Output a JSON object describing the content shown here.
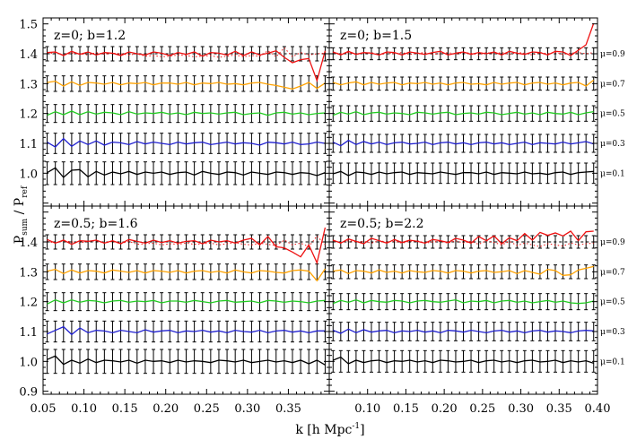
{
  "chart_data": {
    "type": "line",
    "xlabel": "k [h Mpc",
    "xlabel_sup": "-1",
    "xlabel_close": "]",
    "ylabel_main": "P",
    "ylabel_sub1": "sum",
    "ylabel_mid": " / P",
    "ylabel_sub2": "ref",
    "xlim": [
      0.05,
      0.4
    ],
    "ylim": [
      0.89,
      1.52
    ],
    "x_ticks": [
      "0.05",
      "0.10",
      "0.15",
      "0.20",
      "0.25",
      "0.30",
      "0.35"
    ],
    "x_ticks_right": [
      "0.10",
      "0.15",
      "0.20",
      "0.25",
      "0.30",
      "0.35",
      "0.40"
    ],
    "y_ticks_top": [
      "1.0",
      "1.1",
      "1.2",
      "1.3",
      "1.4",
      "1.5"
    ],
    "y_ticks_bottom": [
      "0.9",
      "1.0",
      "1.1",
      "1.2",
      "1.3",
      "1.4"
    ],
    "mu_labels": [
      "μ=0.1",
      "μ=0.3",
      "μ=0.5",
      "μ=0.7",
      "μ=0.9"
    ],
    "series_colors": [
      "#000000",
      "#1f1fd0",
      "#22cc22",
      "#ffa200",
      "#ee1111"
    ],
    "offsets": [
      1.0,
      1.1,
      1.2,
      1.3,
      1.4
    ],
    "panels": [
      {
        "title": "z=0; b=1.2",
        "errors": [
          0.038,
          0.034,
          0.03,
          0.026,
          0.024
        ],
        "series_deviations": [
          [
            0.002,
            0.018,
            -0.014,
            0.01,
            0.012,
            -0.012,
            0.006,
            -0.006,
            0.004,
            -0.002,
            0.006,
            -0.004,
            0.004,
            0.0,
            0.004,
            -0.004,
            0.002,
            0.004,
            -0.006,
            0.006,
            0.0,
            -0.004,
            0.004,
            0.002,
            -0.006,
            0.004,
            0.0,
            -0.004,
            0.004,
            0.002,
            -0.004,
            0.002,
            0.0,
            -0.008,
            0.002
          ],
          [
            0.004,
            -0.012,
            0.016,
            -0.01,
            0.008,
            -0.004,
            0.008,
            -0.006,
            0.004,
            0.002,
            -0.004,
            0.006,
            -0.002,
            0.004,
            0.0,
            -0.004,
            0.004,
            -0.002,
            0.002,
            0.004,
            -0.004,
            0.0,
            0.004,
            -0.002,
            0.002,
            0.0,
            -0.006,
            0.004,
            0.002,
            -0.002,
            0.004,
            -0.004,
            -0.002,
            0.004,
            0.0
          ],
          [
            -0.006,
            0.006,
            -0.004,
            0.008,
            -0.004,
            0.006,
            -0.002,
            0.004,
            0.002,
            -0.004,
            0.006,
            -0.002,
            0.002,
            0.0,
            0.004,
            -0.002,
            0.002,
            -0.004,
            0.004,
            0.0,
            0.002,
            -0.002,
            0.002,
            0.004,
            -0.004,
            0.0,
            0.002,
            -0.006,
            0.002,
            0.004,
            -0.002,
            0.002,
            -0.004,
            0.0,
            0.002
          ],
          [
            0.004,
            0.008,
            -0.008,
            0.006,
            -0.006,
            0.004,
            0.002,
            -0.002,
            0.004,
            -0.004,
            0.002,
            0.0,
            0.004,
            -0.004,
            0.002,
            0.002,
            -0.002,
            0.004,
            -0.004,
            0.002,
            0.0,
            0.004,
            -0.002,
            0.0,
            -0.004,
            0.002,
            0.004,
            -0.002,
            -0.006,
            -0.012,
            -0.018,
            -0.008,
            0.004,
            -0.016,
            0.002
          ],
          [
            0.004,
            0.006,
            -0.006,
            0.008,
            -0.002,
            0.006,
            -0.004,
            0.004,
            0.002,
            -0.006,
            0.006,
            0.0,
            -0.004,
            0.006,
            0.002,
            -0.006,
            0.004,
            -0.002,
            0.006,
            -0.008,
            0.004,
            0.002,
            -0.004,
            0.008,
            -0.006,
            0.006,
            -0.004,
            0.002,
            0.01,
            -0.012,
            -0.03,
            -0.02,
            -0.016,
            -0.09,
            0.01
          ]
        ],
        "dotted_red": [
          0.0,
          0.004,
          -0.004,
          0.002,
          0.0,
          -0.004,
          0.004,
          -0.002,
          0.002,
          0.0,
          -0.004,
          0.0,
          -0.008,
          -0.006,
          -0.01,
          -0.008,
          -0.004,
          -0.006,
          -0.01,
          -0.008,
          -0.006,
          -0.012,
          -0.008,
          -0.004,
          -0.01,
          -0.006,
          -0.008,
          0.01,
          -0.01,
          0.02,
          -0.01,
          0.004,
          -0.004,
          0.0,
          0.002
        ]
      },
      {
        "title": "z=0; b=1.5",
        "errors": [
          0.034,
          0.03,
          0.026,
          0.022,
          0.02
        ],
        "series_deviations": [
          [
            -0.002,
            0.006,
            -0.008,
            0.004,
            0.002,
            -0.004,
            0.004,
            -0.002,
            0.002,
            0.004,
            -0.004,
            0.002,
            0.0,
            -0.002,
            0.004,
            0.0,
            -0.004,
            0.002,
            0.002,
            -0.002,
            0.004,
            -0.004,
            0.002,
            0.0,
            -0.002,
            0.004,
            -0.002,
            0.0,
            -0.004,
            0.002,
            0.004,
            -0.004,
            0.002,
            0.004,
            0.006
          ],
          [
            0.004,
            -0.008,
            0.01,
            -0.004,
            0.006,
            -0.002,
            0.004,
            -0.004,
            0.002,
            0.004,
            -0.002,
            0.0,
            0.004,
            -0.004,
            0.002,
            0.004,
            -0.002,
            0.002,
            -0.004,
            0.002,
            0.004,
            -0.002,
            0.002,
            -0.004,
            0.0,
            0.004,
            -0.004,
            0.002,
            0.0,
            -0.002,
            0.004,
            -0.002,
            0.002,
            0.006,
            -0.002
          ],
          [
            -0.006,
            0.004,
            -0.002,
            0.006,
            -0.004,
            0.002,
            0.004,
            -0.002,
            0.002,
            0.0,
            -0.004,
            0.004,
            0.002,
            -0.002,
            0.002,
            0.004,
            -0.004,
            0.0,
            0.002,
            -0.002,
            0.004,
            0.002,
            -0.004,
            0.0,
            0.004,
            -0.002,
            0.002,
            -0.004,
            0.004,
            0.0,
            -0.002,
            0.004,
            -0.004,
            0.002,
            0.006
          ],
          [
            0.004,
            -0.004,
            0.002,
            0.006,
            -0.004,
            0.004,
            -0.002,
            0.002,
            0.004,
            -0.004,
            0.002,
            0.0,
            0.004,
            -0.002,
            0.002,
            -0.004,
            0.002,
            0.004,
            -0.002,
            0.0,
            -0.004,
            0.004,
            -0.002,
            0.002,
            0.004,
            -0.004,
            0.002,
            0.004,
            -0.002,
            0.002,
            -0.004,
            0.002,
            0.004,
            -0.008,
            0.012
          ],
          [
            0.006,
            -0.004,
            0.008,
            -0.002,
            0.004,
            0.002,
            -0.004,
            0.006,
            0.004,
            -0.004,
            0.006,
            0.002,
            -0.002,
            0.004,
            0.008,
            -0.004,
            0.002,
            0.006,
            -0.002,
            0.004,
            0.0,
            0.006,
            -0.004,
            0.008,
            0.002,
            -0.002,
            0.006,
            0.004,
            -0.004,
            0.008,
            0.006,
            -0.006,
            0.012,
            0.03,
            0.102
          ]
        ],
        "dotted_red": [
          0.004,
          0.0,
          0.004,
          -0.002,
          0.002,
          0.004,
          -0.004,
          0.002,
          0.0,
          0.004,
          -0.002,
          0.002,
          0.004,
          -0.002,
          0.0,
          0.004,
          -0.002,
          0.004,
          0.002,
          -0.004,
          0.004,
          0.0,
          0.004,
          -0.002,
          0.004,
          0.002,
          -0.004,
          0.004,
          0.0,
          0.004,
          -0.002,
          0.002,
          0.004,
          0.0,
          0.004
        ]
      },
      {
        "title": "z=0.5; b=1.6",
        "errors": [
          0.04,
          0.035,
          0.03,
          0.026,
          0.024
        ],
        "series_deviations": [
          [
            0.006,
            0.018,
            -0.01,
            0.004,
            -0.006,
            0.008,
            -0.004,
            0.004,
            0.002,
            -0.002,
            0.004,
            -0.006,
            0.004,
            0.0,
            0.002,
            -0.004,
            0.004,
            -0.002,
            0.002,
            0.0,
            -0.004,
            0.004,
            0.002,
            -0.002,
            0.004,
            -0.004,
            0.0,
            0.004,
            -0.002,
            0.002,
            -0.004,
            0.004,
            -0.008,
            0.004,
            -0.012
          ],
          [
            -0.008,
            0.004,
            0.016,
            -0.01,
            0.012,
            -0.004,
            0.004,
            0.002,
            -0.004,
            0.004,
            0.0,
            -0.004,
            0.006,
            -0.002,
            0.002,
            0.004,
            -0.004,
            0.002,
            0.0,
            0.004,
            -0.002,
            0.002,
            -0.004,
            0.004,
            0.0,
            -0.002,
            0.004,
            -0.004,
            0.002,
            0.004,
            -0.002,
            0.002,
            -0.004,
            0.002,
            0.002
          ],
          [
            -0.008,
            0.006,
            -0.004,
            0.006,
            -0.002,
            0.004,
            0.002,
            -0.004,
            0.002,
            0.004,
            -0.002,
            0.002,
            0.0,
            0.004,
            -0.004,
            0.002,
            0.002,
            -0.002,
            0.004,
            0.0,
            -0.004,
            0.002,
            0.004,
            -0.002,
            0.0,
            0.002,
            -0.004,
            0.004,
            0.002,
            -0.002,
            0.002,
            0.0,
            -0.004,
            0.002,
            0.004
          ],
          [
            0.002,
            0.008,
            -0.006,
            0.006,
            -0.004,
            0.004,
            0.002,
            -0.004,
            0.006,
            0.002,
            -0.002,
            0.004,
            -0.004,
            0.004,
            0.002,
            -0.002,
            0.004,
            -0.004,
            0.002,
            0.004,
            -0.002,
            0.002,
            -0.004,
            0.006,
            0.0,
            -0.004,
            0.004,
            0.002,
            -0.002,
            -0.004,
            0.004,
            0.006,
            0.002,
            -0.03,
            0.01
          ],
          [
            0.008,
            -0.004,
            0.006,
            -0.008,
            0.004,
            0.002,
            0.006,
            -0.004,
            0.004,
            -0.006,
            0.008,
            0.002,
            -0.004,
            0.006,
            -0.002,
            0.004,
            -0.004,
            0.002,
            0.004,
            -0.006,
            0.006,
            0.0,
            0.004,
            -0.004,
            0.006,
            0.012,
            -0.01,
            0.018,
            -0.016,
            -0.02,
            -0.034,
            -0.05,
            -0.01,
            -0.07,
            0.048
          ]
        ],
        "dotted_red": [
          0.002,
          -0.004,
          0.004,
          0.0,
          -0.004,
          0.002,
          0.004,
          -0.004,
          0.002,
          -0.006,
          0.002,
          -0.008,
          -0.006,
          -0.004,
          -0.01,
          -0.006,
          -0.008,
          -0.004,
          -0.008,
          -0.006,
          -0.004,
          -0.01,
          -0.006,
          -0.002,
          -0.008,
          -0.01,
          -0.004,
          -0.008,
          -0.012,
          0.006,
          -0.01,
          -0.004,
          -0.016,
          0.02,
          -0.01
        ]
      },
      {
        "title": "z=0.5; b=2.2",
        "errors": [
          0.036,
          0.031,
          0.027,
          0.023,
          0.021
        ],
        "series_deviations": [
          [
            0.004,
            0.014,
            -0.008,
            0.004,
            -0.004,
            0.002,
            0.004,
            -0.004,
            0.002,
            0.0,
            0.004,
            -0.002,
            0.002,
            -0.004,
            0.004,
            0.002,
            -0.002,
            0.0,
            0.004,
            -0.004,
            0.002,
            0.004,
            -0.002,
            0.002,
            -0.004,
            0.002,
            0.004,
            -0.002,
            0.0,
            0.004,
            -0.004,
            0.002,
            -0.002,
            0.002,
            -0.006
          ],
          [
            0.004,
            -0.006,
            0.008,
            -0.004,
            0.006,
            -0.002,
            0.002,
            0.004,
            -0.004,
            0.002,
            0.0,
            0.004,
            -0.002,
            0.002,
            -0.004,
            0.004,
            0.002,
            -0.002,
            0.004,
            0.0,
            -0.004,
            0.002,
            0.004,
            -0.002,
            0.002,
            -0.004,
            0.002,
            0.004,
            -0.002,
            0.002,
            0.0,
            -0.004,
            0.002,
            0.004,
            0.002
          ],
          [
            -0.006,
            0.004,
            -0.002,
            0.006,
            -0.004,
            0.004,
            0.0,
            -0.002,
            0.004,
            0.002,
            -0.004,
            0.002,
            0.004,
            0.0,
            -0.002,
            0.002,
            0.006,
            -0.004,
            0.002,
            0.0,
            0.004,
            -0.004,
            0.002,
            0.004,
            -0.002,
            0.002,
            -0.004,
            0.0,
            0.004,
            -0.002,
            0.002,
            -0.004,
            -0.006,
            -0.004,
            0.002
          ],
          [
            0.002,
            0.006,
            -0.006,
            0.004,
            0.002,
            -0.004,
            0.006,
            -0.002,
            0.002,
            -0.004,
            0.004,
            0.0,
            -0.002,
            0.004,
            0.002,
            -0.004,
            0.004,
            0.002,
            -0.004,
            0.002,
            0.004,
            -0.002,
            0.0,
            0.004,
            -0.006,
            0.004,
            -0.002,
            -0.008,
            0.008,
            0.004,
            -0.012,
            -0.01,
            0.006,
            0.012,
            0.018
          ],
          [
            0.006,
            -0.004,
            0.01,
            0.002,
            -0.006,
            0.012,
            0.004,
            -0.004,
            0.008,
            -0.002,
            0.006,
            0.002,
            -0.004,
            0.008,
            0.004,
            -0.002,
            0.012,
            0.006,
            -0.004,
            0.018,
            0.004,
            0.02,
            -0.006,
            0.014,
            0.004,
            0.028,
            0.006,
            0.032,
            0.022,
            0.03,
            0.02,
            0.036,
            0.004,
            0.034,
            0.036
          ]
        ],
        "dotted_red": [
          0.004,
          -0.002,
          0.004,
          0.0,
          0.002,
          -0.004,
          0.004,
          0.0,
          0.002,
          -0.004,
          0.002,
          0.004,
          -0.004,
          0.0,
          0.002,
          -0.004,
          0.004,
          -0.004,
          0.002,
          -0.008,
          0.004,
          -0.002,
          -0.01,
          0.002,
          -0.012,
          -0.004,
          -0.01,
          -0.016,
          -0.006,
          -0.01,
          -0.014,
          -0.004,
          -0.01,
          -0.006,
          -0.004
        ]
      }
    ]
  }
}
